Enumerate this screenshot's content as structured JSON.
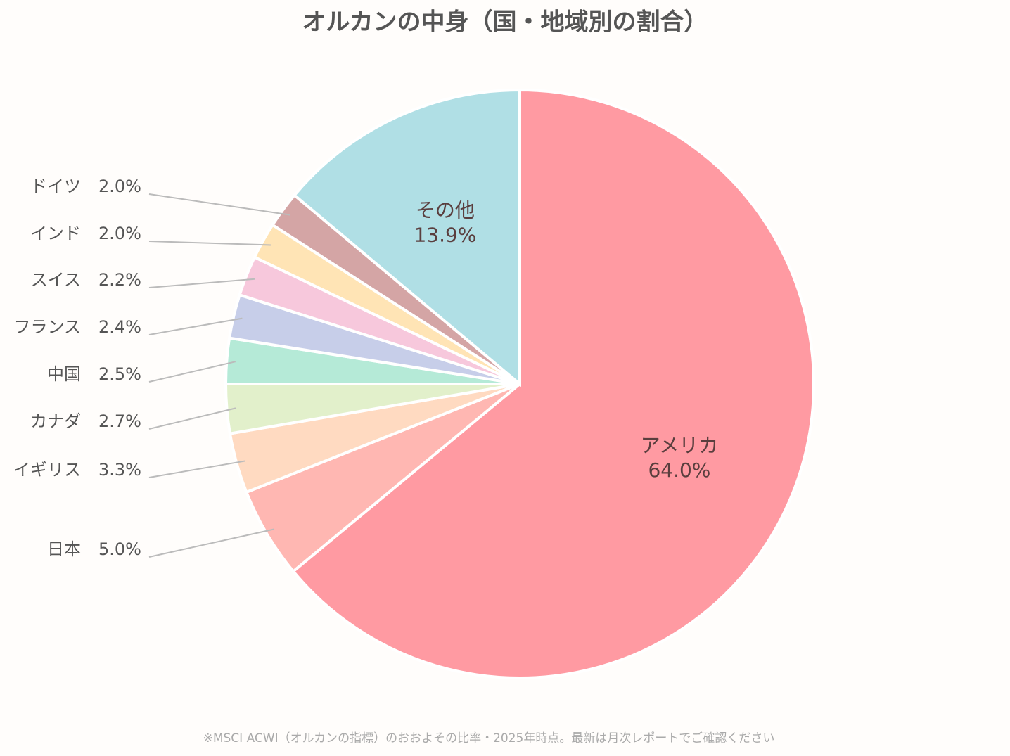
{
  "chart_data": {
    "type": "pie",
    "title": "オルカンの中身（国・地域別の割合）",
    "categories": [
      "アメリカ",
      "日本",
      "イギリス",
      "カナダ",
      "中国",
      "フランス",
      "スイス",
      "インド",
      "ドイツ",
      "その他"
    ],
    "values": [
      64.0,
      5.0,
      3.3,
      2.7,
      2.5,
      2.4,
      2.2,
      2.0,
      2.0,
      13.9
    ],
    "value_labels": [
      "64.0%",
      "5.0%",
      "3.3%",
      "2.7%",
      "2.5%",
      "2.4%",
      "2.2%",
      "2.0%",
      "2.0%",
      "13.9%"
    ],
    "colors": [
      "#ff9aa2",
      "#ffb7b2",
      "#ffdac1",
      "#e2f0cb",
      "#b5ead7",
      "#c7cee9",
      "#f7c8dc",
      "#ffe4b5",
      "#d4a5a5",
      "#b0dfe5"
    ],
    "note": "※MSCI ACWI（オルカンの指標）のおおよその比率・2025年時点。最新は月次レポートでご確認ください"
  }
}
